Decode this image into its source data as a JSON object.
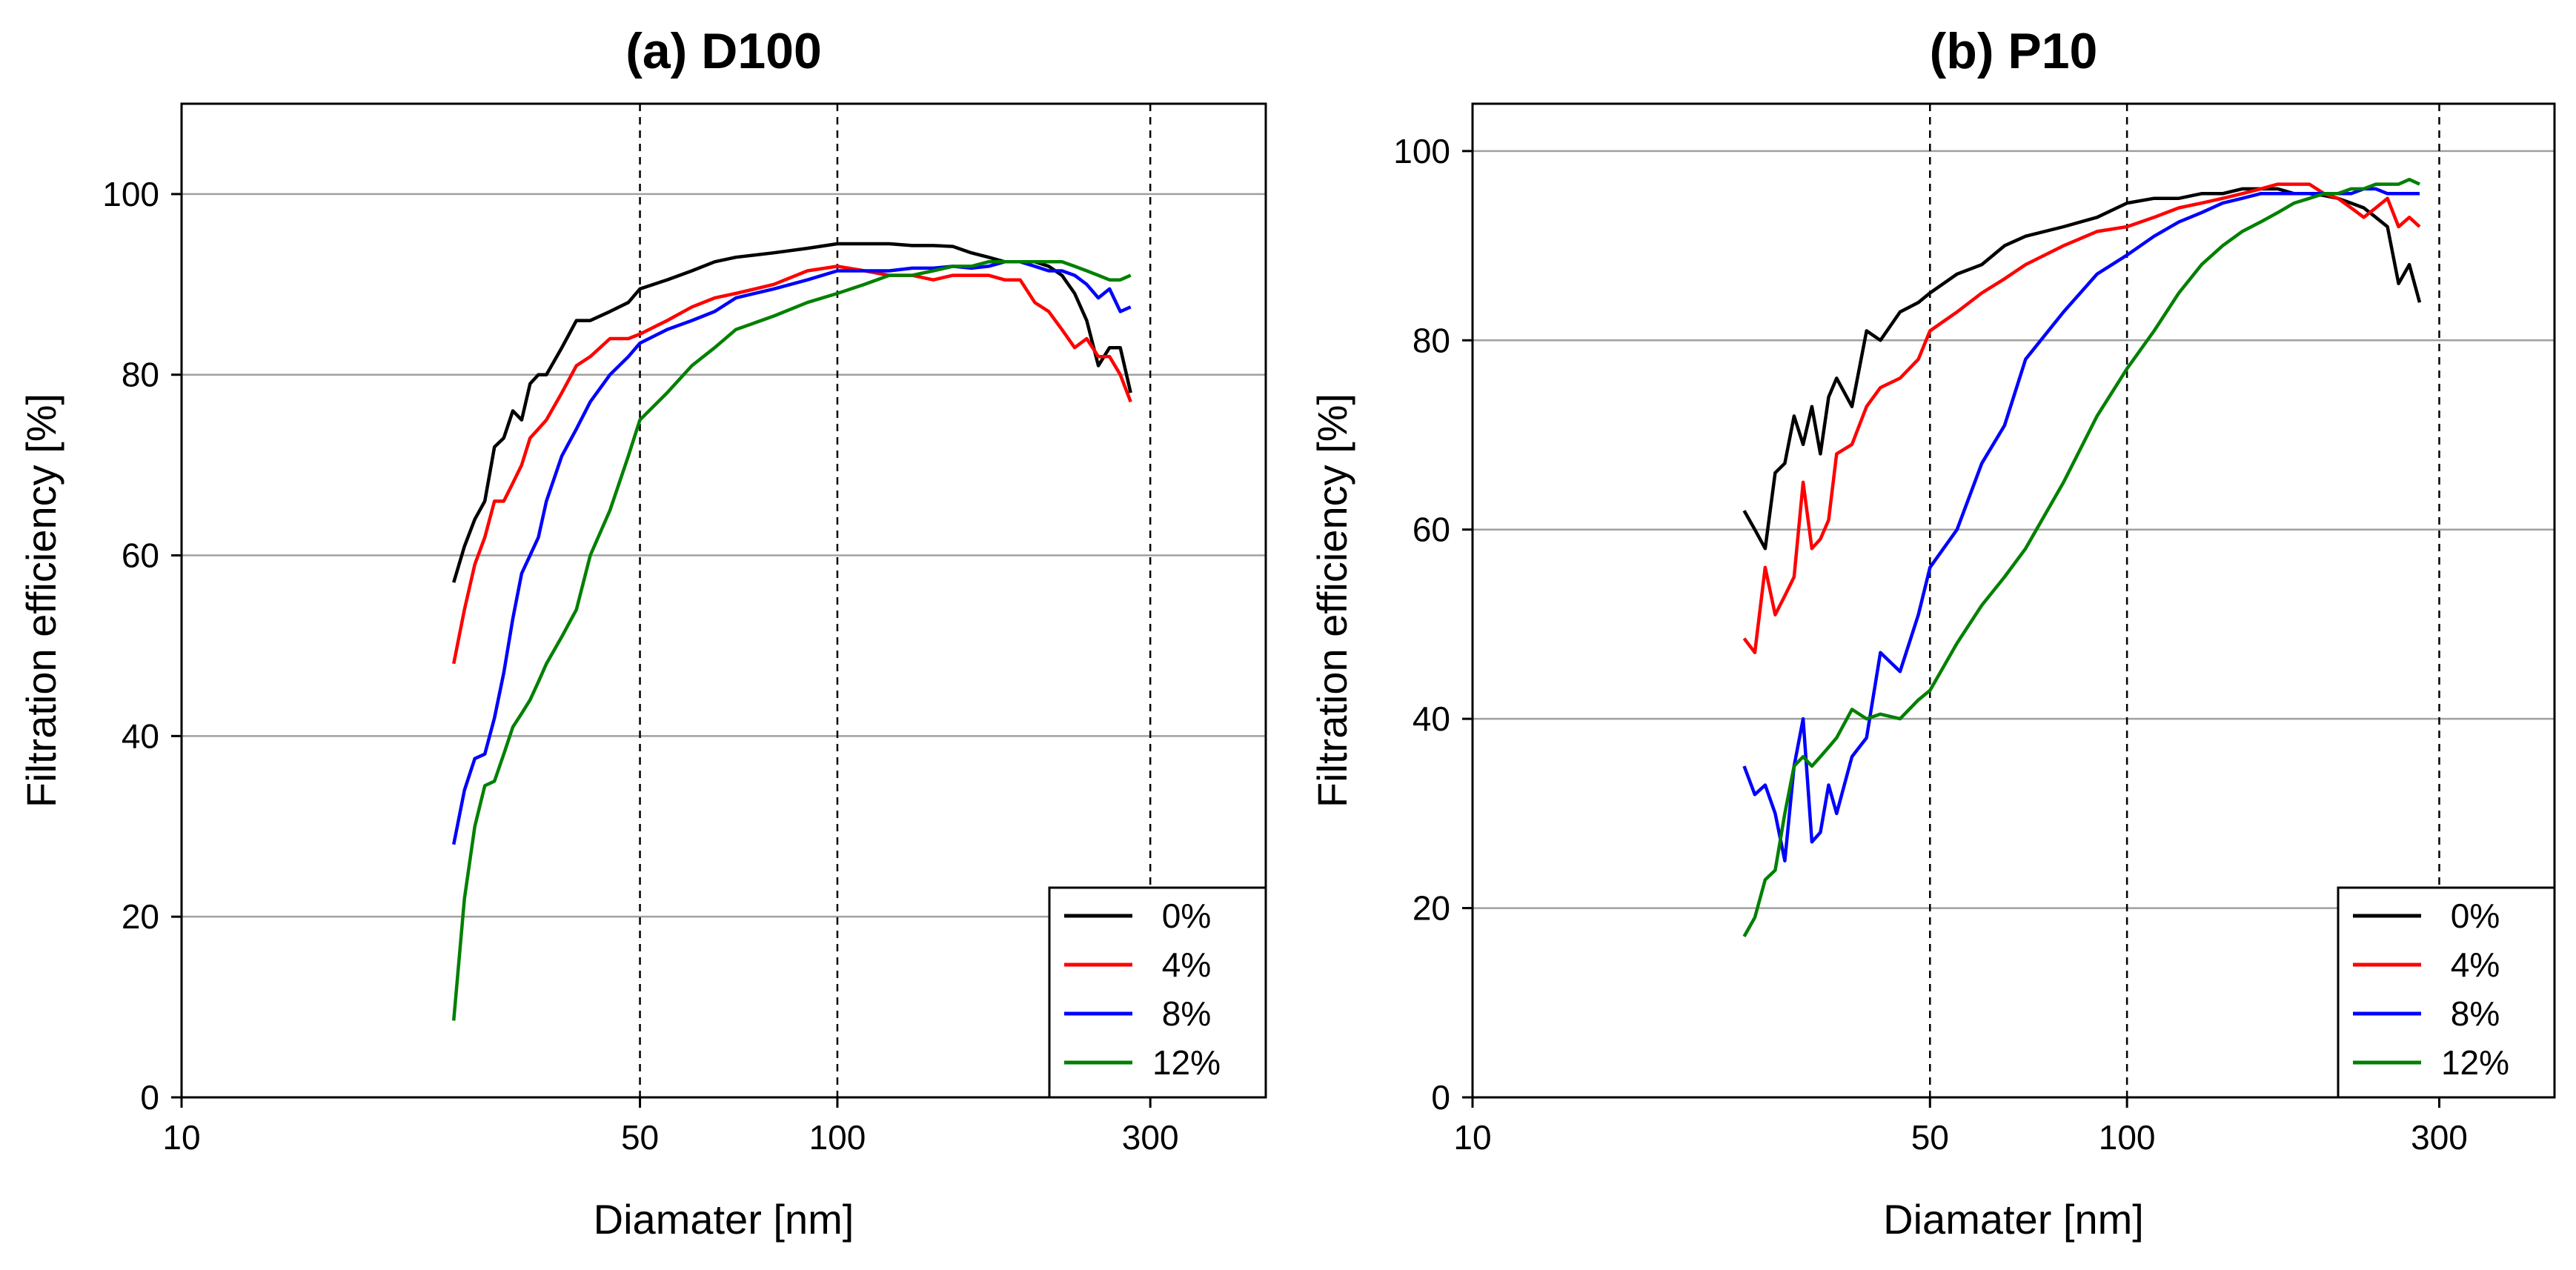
{
  "chart_data": [
    {
      "type": "line",
      "title": "(a) D100",
      "xlabel": "Diamater [nm]",
      "ylabel": "Filtration efficiency [%]",
      "xscale": "log",
      "xlim": [
        10,
        450
      ],
      "ylim": [
        0,
        110
      ],
      "xticks": [
        10,
        50,
        100,
        300
      ],
      "xtick_labels": [
        "10",
        "50",
        "100",
        "300"
      ],
      "yticks": [
        0,
        20,
        40,
        60,
        80,
        100
      ],
      "ytick_labels": [
        "0",
        "20",
        "40",
        "60",
        "80",
        "100"
      ],
      "grid": "horizontal",
      "reference_lines_x": [
        50,
        100,
        300
      ],
      "legend_position": "bottom-right",
      "series": [
        {
          "name": "0%",
          "color": "#000000",
          "x": [
            26,
            27,
            28,
            29,
            30,
            31,
            32,
            33,
            34,
            35,
            36,
            38,
            40,
            42,
            45,
            48,
            50,
            55,
            60,
            65,
            70,
            80,
            90,
            100,
            110,
            120,
            130,
            140,
            150,
            160,
            170,
            180,
            190,
            200,
            210,
            220,
            230,
            240,
            250,
            260,
            270,
            280
          ],
          "y": [
            57,
            61,
            64,
            66,
            72,
            73,
            76,
            75,
            79,
            80,
            80,
            83,
            86,
            86,
            87,
            88,
            89.5,
            90.5,
            91.5,
            92.5,
            93,
            93.5,
            94,
            94.5,
            94.5,
            94.5,
            94.3,
            94.3,
            94.2,
            93.5,
            93,
            92.5,
            92.5,
            92.5,
            92,
            91,
            89,
            86,
            81,
            83,
            83,
            78
          ]
        },
        {
          "name": "4%",
          "color": "#ff0000",
          "x": [
            26,
            27,
            28,
            29,
            30,
            31,
            32,
            33,
            34,
            35,
            36,
            38,
            40,
            42,
            45,
            48,
            50,
            55,
            60,
            65,
            70,
            80,
            90,
            100,
            110,
            120,
            130,
            140,
            150,
            160,
            170,
            180,
            190,
            200,
            210,
            220,
            230,
            240,
            250,
            260,
            270,
            280
          ],
          "y": [
            48,
            54,
            59,
            62,
            66,
            66,
            68,
            70,
            73,
            74,
            75,
            78,
            81,
            82,
            84,
            84,
            84.5,
            86,
            87.5,
            88.5,
            89,
            90,
            91.5,
            92,
            91.5,
            91,
            91,
            90.5,
            91,
            91,
            91,
            90.5,
            90.5,
            88,
            87,
            85,
            83,
            84,
            82,
            82,
            80,
            77
          ]
        },
        {
          "name": "8%",
          "color": "#0000ff",
          "x": [
            26,
            27,
            28,
            29,
            30,
            31,
            32,
            33,
            34,
            35,
            36,
            38,
            40,
            42,
            45,
            48,
            50,
            55,
            60,
            65,
            70,
            80,
            90,
            100,
            110,
            120,
            130,
            140,
            150,
            160,
            170,
            180,
            190,
            200,
            210,
            220,
            230,
            240,
            250,
            260,
            270,
            280
          ],
          "y": [
            28,
            34,
            37.5,
            38,
            42,
            47,
            53,
            58,
            60,
            62,
            66,
            71,
            74,
            77,
            80,
            82,
            83.5,
            85,
            86,
            87,
            88.5,
            89.5,
            90.5,
            91.5,
            91.5,
            91.5,
            91.8,
            91.8,
            92,
            91.8,
            92,
            92.5,
            92.5,
            92,
            91.5,
            91.5,
            91,
            90,
            88.5,
            89.5,
            87,
            87.5
          ]
        },
        {
          "name": "12%",
          "color": "#008000",
          "x": [
            26,
            27,
            28,
            29,
            30,
            31,
            32,
            33,
            34,
            35,
            36,
            38,
            40,
            42,
            45,
            48,
            50,
            55,
            60,
            65,
            70,
            80,
            90,
            100,
            110,
            120,
            130,
            140,
            150,
            160,
            170,
            180,
            190,
            200,
            210,
            220,
            230,
            240,
            250,
            260,
            270,
            280
          ],
          "y": [
            8.5,
            22,
            30,
            34.5,
            35,
            38,
            41,
            42.5,
            44,
            46,
            48,
            51,
            54,
            60,
            65,
            71,
            75,
            78,
            81,
            83,
            85,
            86.5,
            88,
            89,
            90,
            91,
            91,
            91.5,
            92,
            92,
            92.5,
            92.5,
            92.5,
            92.5,
            92.5,
            92.5,
            92,
            91.5,
            91,
            90.5,
            90.5,
            91
          ]
        }
      ]
    },
    {
      "type": "line",
      "title": "(b) P10",
      "xlabel": "Diamater [nm]",
      "ylabel": "Filtration efficiency [%]",
      "xscale": "log",
      "xlim": [
        10,
        450
      ],
      "ylim": [
        0,
        105
      ],
      "xticks": [
        10,
        50,
        100,
        300
      ],
      "xtick_labels": [
        "10",
        "50",
        "100",
        "300"
      ],
      "yticks": [
        0,
        20,
        40,
        60,
        80,
        100
      ],
      "ytick_labels": [
        "0",
        "20",
        "40",
        "60",
        "80",
        "100"
      ],
      "grid": "horizontal",
      "reference_lines_x": [
        50,
        100,
        300
      ],
      "legend_position": "bottom-right",
      "series": [
        {
          "name": "0%",
          "color": "#000000",
          "x": [
            26,
            27,
            28,
            29,
            30,
            31,
            32,
            33,
            34,
            35,
            36,
            38,
            40,
            42,
            45,
            48,
            50,
            55,
            60,
            65,
            70,
            80,
            90,
            100,
            110,
            120,
            130,
            140,
            150,
            160,
            170,
            180,
            190,
            200,
            210,
            220,
            230,
            240,
            250,
            260,
            270,
            280
          ],
          "y": [
            62,
            60,
            58,
            66,
            67,
            72,
            69,
            73,
            68,
            74,
            76,
            73,
            81,
            80,
            83,
            84,
            85,
            87,
            88,
            90,
            91,
            92,
            93,
            94.5,
            95,
            95,
            95.5,
            95.5,
            96,
            96,
            96,
            95.5,
            95.5,
            95.3,
            95,
            94.5,
            94,
            93,
            92,
            86,
            88,
            84
          ]
        },
        {
          "name": "4%",
          "color": "#ff0000",
          "x": [
            26,
            27,
            28,
            29,
            30,
            31,
            32,
            33,
            34,
            35,
            36,
            38,
            40,
            42,
            45,
            48,
            50,
            55,
            60,
            65,
            70,
            80,
            90,
            100,
            110,
            120,
            130,
            140,
            150,
            160,
            170,
            180,
            190,
            200,
            210,
            220,
            230,
            240,
            250,
            260,
            270,
            280
          ],
          "y": [
            48.5,
            47,
            56,
            51,
            53,
            55,
            65,
            58,
            59,
            61,
            68,
            69,
            73,
            75,
            76,
            78,
            81,
            83,
            85,
            86.5,
            88,
            90,
            91.5,
            92,
            93,
            94,
            94.5,
            95,
            95.5,
            96,
            96.5,
            96.5,
            96.5,
            95.5,
            95,
            94,
            93,
            94,
            95,
            92,
            93,
            92
          ]
        },
        {
          "name": "8%",
          "color": "#0000ff",
          "x": [
            26,
            27,
            28,
            29,
            30,
            31,
            32,
            33,
            34,
            35,
            36,
            38,
            40,
            42,
            45,
            48,
            50,
            55,
            60,
            65,
            70,
            80,
            90,
            100,
            110,
            120,
            130,
            140,
            150,
            160,
            170,
            180,
            190,
            200,
            210,
            220,
            230,
            240,
            250,
            260,
            270,
            280
          ],
          "y": [
            35,
            32,
            33,
            30,
            25,
            35,
            40,
            27,
            28,
            33,
            30,
            36,
            38,
            47,
            45,
            51,
            56,
            60,
            67,
            71,
            78,
            83,
            87,
            89,
            91,
            92.5,
            93.5,
            94.5,
            95,
            95.5,
            95.5,
            95.5,
            95.5,
            95.5,
            95.5,
            95.5,
            96,
            96,
            95.5,
            95.5,
            95.5,
            95.5
          ]
        },
        {
          "name": "12%",
          "color": "#008000",
          "x": [
            26,
            27,
            28,
            29,
            30,
            31,
            32,
            33,
            34,
            35,
            36,
            38,
            40,
            42,
            45,
            48,
            50,
            55,
            60,
            65,
            70,
            80,
            90,
            100,
            110,
            120,
            130,
            140,
            150,
            160,
            170,
            180,
            190,
            200,
            210,
            220,
            230,
            240,
            250,
            260,
            270,
            280
          ],
          "y": [
            17,
            19,
            23,
            24,
            30,
            35,
            36,
            35,
            36,
            37,
            38,
            41,
            40,
            40.5,
            40,
            42,
            43,
            48,
            52,
            55,
            58,
            65,
            72,
            77,
            81,
            85,
            88,
            90,
            91.5,
            92.5,
            93.5,
            94.5,
            95,
            95.5,
            95.5,
            96,
            96,
            96.5,
            96.5,
            96.5,
            97,
            96.5
          ]
        }
      ]
    }
  ]
}
